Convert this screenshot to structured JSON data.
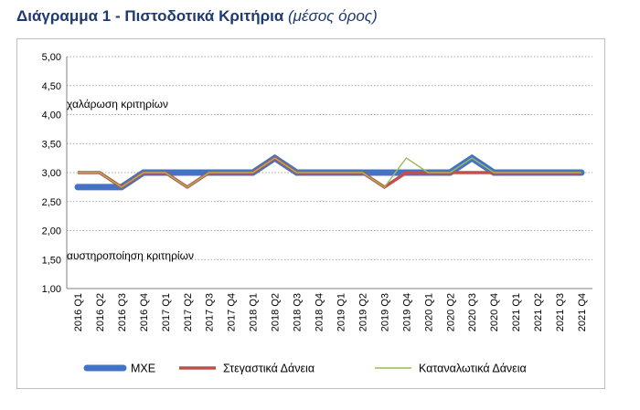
{
  "header": {
    "title_main": "Διάγραμμα 1 - Πιστοδοτικά Κριτήρια",
    "title_sub": "(μέσος όρος)"
  },
  "chart_data": {
    "type": "line",
    "title": "Διάγραμμα 1 - Πιστοδοτικά Κριτήρια (μέσος όρος)",
    "categories": [
      "2016 Q1",
      "2016 Q2",
      "2016 Q3",
      "2016 Q4",
      "2017 Q1",
      "2017 Q2",
      "2017 Q3",
      "2017 Q4",
      "2018 Q1",
      "2018 Q2",
      "2018 Q3",
      "2018 Q4",
      "2019 Q1",
      "2019 Q2",
      "2019 Q3",
      "2019 Q4",
      "2020 Q1",
      "2020 Q2",
      "2020 Q3",
      "2020 Q4",
      "2021 Q1",
      "2021 Q2",
      "2021 Q3",
      "2021 Q4"
    ],
    "y_ticks": [
      "5,00",
      "4,50",
      "4,00",
      "3,50",
      "3,00",
      "2,50",
      "2,00",
      "1,50",
      "1,00"
    ],
    "ylim": [
      1,
      5
    ],
    "grid": true,
    "legend_position": "bottom",
    "annotations": [
      "χαλάρωση κριτηρίων",
      "αυστηροποίηση κριτηρίων"
    ],
    "series": [
      {
        "name": "ΜΧΕ",
        "color": "#4472c4",
        "values": [
          2.75,
          2.75,
          2.75,
          3.0,
          3.0,
          3.0,
          3.0,
          3.0,
          3.0,
          3.25,
          3.0,
          3.0,
          3.0,
          3.0,
          3.0,
          3.0,
          3.0,
          3.0,
          3.25,
          3.0,
          3.0,
          3.0,
          3.0,
          3.0
        ]
      },
      {
        "name": "Στεγαστικά Δάνεια",
        "color": "#c0504d",
        "values": [
          3.0,
          3.0,
          2.75,
          3.0,
          3.0,
          2.75,
          3.0,
          3.0,
          3.0,
          3.25,
          3.0,
          3.0,
          3.0,
          3.0,
          2.75,
          3.0,
          3.0,
          3.0,
          3.0,
          3.0,
          3.0,
          3.0,
          3.0,
          3.0
        ]
      },
      {
        "name": "Καταναλωτικά Δάνεια",
        "color": "#9bbb59",
        "values": [
          3.0,
          3.0,
          2.75,
          3.0,
          3.0,
          2.75,
          3.0,
          3.0,
          3.0,
          3.25,
          3.0,
          3.0,
          3.0,
          3.0,
          2.75,
          3.25,
          3.0,
          3.0,
          3.25,
          3.0,
          3.0,
          3.0,
          3.0,
          3.0
        ]
      }
    ]
  }
}
